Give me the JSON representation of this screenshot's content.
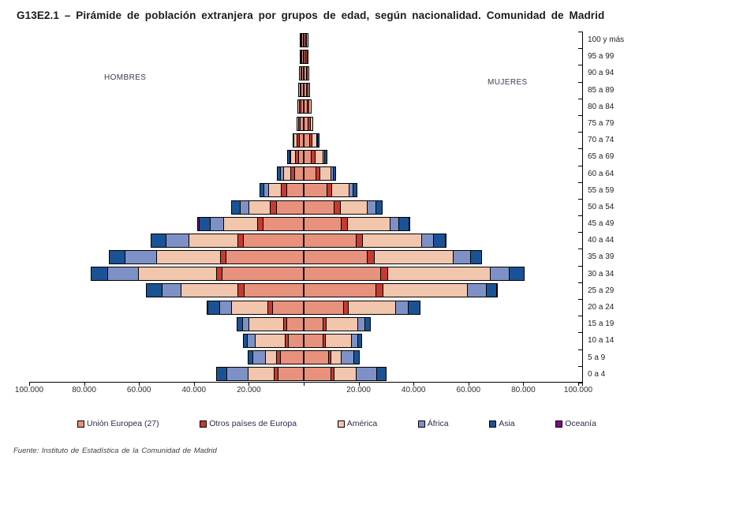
{
  "title": "G13E2.1 – Pirámide de población extranjera por grupos de edad, según nacionalidad.  Comunidad de Madrid",
  "side_labels": {
    "left": "HOMBRES",
    "right": "MUJERES"
  },
  "source_note": "Fuente: Instituto de Estadística de la  Comunidad de Madrid",
  "chart_data": {
    "type": "bar",
    "subtype": "population_pyramid_stacked",
    "title": "Pirámide de población extranjera por grupos de edad, según nacionalidad. Comunidad de Madrid",
    "unit": "personas",
    "x_axis": {
      "max_each_side": 100000,
      "tick_interval": 20000,
      "tick_labels": [
        "100.000",
        "80.000",
        "60.000",
        "40.000",
        "20.000",
        "",
        "20.000",
        "40.000",
        "60.000",
        "80.000",
        "100.000"
      ],
      "grid": false
    },
    "legend_position": "bottom",
    "series": [
      {
        "name": "Unión Europea (27)",
        "color": "#E8917D"
      },
      {
        "name": "Otros países de Europa",
        "color": "#C43B32"
      },
      {
        "name": "América",
        "color": "#F2C5AD"
      },
      {
        "name": "África",
        "color": "#7E91C6"
      },
      {
        "name": "Asia",
        "color": "#1A5296"
      },
      {
        "name": "Oceanía",
        "color": "#7D0E7E"
      }
    ],
    "series_order_note": "male/female value arrays follow series order above; segments stack outward from the center axis",
    "rows": [
      {
        "age": "100 y más",
        "male": [
          200,
          50,
          100,
          0,
          0,
          0
        ],
        "female": [
          250,
          80,
          120,
          0,
          0,
          0
        ]
      },
      {
        "age": "95 a 99",
        "male": [
          250,
          60,
          90,
          0,
          0,
          0
        ],
        "female": [
          330,
          110,
          160,
          0,
          0,
          0
        ]
      },
      {
        "age": "90 a 94",
        "male": [
          300,
          100,
          150,
          0,
          0,
          0
        ],
        "female": [
          450,
          150,
          250,
          0,
          0,
          0
        ]
      },
      {
        "age": "85 a 89",
        "male": [
          450,
          150,
          200,
          0,
          0,
          0
        ],
        "female": [
          650,
          250,
          300,
          0,
          0,
          0
        ]
      },
      {
        "age": "80 a 84",
        "male": [
          600,
          250,
          300,
          0,
          0,
          0
        ],
        "female": [
          900,
          350,
          450,
          0,
          0,
          0
        ]
      },
      {
        "age": "75 a 79",
        "male": [
          800,
          300,
          400,
          0,
          0,
          0
        ],
        "female": [
          1200,
          400,
          600,
          0,
          0,
          0
        ]
      },
      {
        "age": "70 a 74",
        "male": [
          1200,
          500,
          800,
          0,
          100,
          0
        ],
        "female": [
          1700,
          500,
          1500,
          100,
          100,
          0
        ]
      },
      {
        "age": "65 a 69",
        "male": [
          1450,
          750,
          1450,
          200,
          450,
          0
        ],
        "female": [
          2400,
          950,
          2700,
          400,
          550,
          0
        ]
      },
      {
        "age": "60 a 64",
        "male": [
          2900,
          1250,
          2300,
          750,
          750,
          0
        ],
        "female": [
          4100,
          1150,
          3650,
          650,
          650,
          0
        ]
      },
      {
        "age": "55 a 59",
        "male": [
          5750,
          1600,
          4400,
          1350,
          1250,
          0
        ],
        "female": [
          7950,
          1600,
          6000,
          1150,
          1150,
          0
        ]
      },
      {
        "age": "50 a 54",
        "male": [
          9550,
          1900,
          7400,
          2900,
          2900,
          0
        ],
        "female": [
          10500,
          2200,
          9300,
          2900,
          2200,
          0
        ]
      },
      {
        "age": "45 a 49",
        "male": [
          14350,
          1700,
          12000,
          4600,
          4000,
          50
        ],
        "female": [
          13200,
          2100,
          15300,
          2700,
          3550,
          50
        ]
      },
      {
        "age": "40 a 44",
        "male": [
          21500,
          1750,
          17600,
          7950,
          5200,
          0
        ],
        "female": [
          18750,
          1850,
          21250,
          4100,
          4000,
          50
        ]
      },
      {
        "age": "35 a 39",
        "male": [
          27800,
          1900,
          22800,
          11200,
          5500,
          0
        ],
        "female": [
          22700,
          2400,
          28350,
          5950,
          3800,
          0
        ]
      },
      {
        "age": "30 a 34",
        "male": [
          29200,
          1900,
          28100,
          11000,
          5700,
          0
        ],
        "female": [
          27600,
          2300,
          37000,
          6700,
          5150,
          0
        ]
      },
      {
        "age": "25 a 29",
        "male": [
          21350,
          1900,
          20300,
          6700,
          5550,
          0
        ],
        "female": [
          25850,
          2400,
          30350,
          6500,
          3650,
          50
        ]
      },
      {
        "age": "20 a 24",
        "male": [
          10850,
          1450,
          13100,
          3850,
          4000,
          50
        ],
        "female": [
          14200,
          1450,
          16950,
          4100,
          4050,
          0
        ]
      },
      {
        "age": "15 a 19",
        "male": [
          5750,
          950,
          12200,
          2200,
          1650,
          0
        ],
        "female": [
          6700,
          750,
          11200,
          2200,
          1900,
          0
        ]
      },
      {
        "age": "10 a 14",
        "male": [
          5100,
          950,
          10500,
          2600,
          1250,
          0
        ],
        "female": [
          6500,
          650,
          9100,
          2200,
          1150,
          0
        ]
      },
      {
        "age": "5 a 9",
        "male": [
          8150,
          950,
          3850,
          4300,
          1450,
          0
        ],
        "female": [
          8600,
          500,
          3550,
          4400,
          1650,
          0
        ]
      },
      {
        "age": "0 a 4",
        "male": [
          8900,
          1150,
          9100,
          7650,
          3350,
          0
        ],
        "female": [
          9600,
          650,
          7950,
          7200,
          3150,
          0
        ]
      }
    ]
  }
}
